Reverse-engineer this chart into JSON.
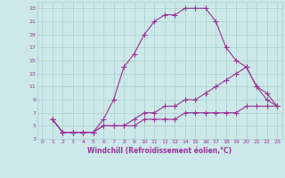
{
  "xlabel": "Windchill (Refroidissement éolien,°C)",
  "xlim": [
    -0.5,
    23.5
  ],
  "ylim": [
    3,
    24
  ],
  "xticks": [
    0,
    1,
    2,
    3,
    4,
    5,
    6,
    7,
    8,
    9,
    10,
    11,
    12,
    13,
    14,
    15,
    16,
    17,
    18,
    19,
    20,
    21,
    22,
    23
  ],
  "yticks": [
    3,
    5,
    7,
    9,
    11,
    13,
    15,
    17,
    19,
    21,
    23
  ],
  "background_color": "#cce8e8",
  "grid_color": "#aacccc",
  "line_color": "#993399",
  "line1_x": [
    1,
    2,
    3,
    4,
    5,
    6,
    7,
    8,
    9,
    10,
    11,
    12,
    13,
    14,
    15,
    16,
    17,
    18,
    19,
    20,
    21,
    22,
    23
  ],
  "line1_y": [
    6,
    4,
    4,
    4,
    4,
    6,
    9,
    14,
    16,
    19,
    21,
    22,
    22,
    23,
    23,
    23,
    21,
    17,
    15,
    14,
    11,
    9,
    8
  ],
  "line2_x": [
    1,
    2,
    3,
    4,
    5,
    6,
    7,
    8,
    9,
    10,
    11,
    12,
    13,
    14,
    15,
    16,
    17,
    18,
    19,
    20,
    21,
    22,
    23
  ],
  "line2_y": [
    6,
    4,
    4,
    4,
    4,
    5,
    5,
    5,
    6,
    7,
    7,
    8,
    8,
    9,
    9,
    10,
    11,
    12,
    13,
    14,
    11,
    10,
    8
  ],
  "line3_x": [
    1,
    2,
    3,
    4,
    5,
    6,
    7,
    8,
    9,
    10,
    11,
    12,
    13,
    14,
    15,
    16,
    17,
    18,
    19,
    20,
    21,
    22,
    23
  ],
  "line3_y": [
    6,
    4,
    4,
    4,
    4,
    5,
    5,
    5,
    5,
    6,
    6,
    6,
    6,
    7,
    7,
    7,
    7,
    7,
    7,
    8,
    8,
    8,
    8
  ],
  "marker": "+",
  "markersize": 4,
  "linewidth": 0.8,
  "tick_fontsize": 4.5,
  "xlabel_fontsize": 5.5
}
